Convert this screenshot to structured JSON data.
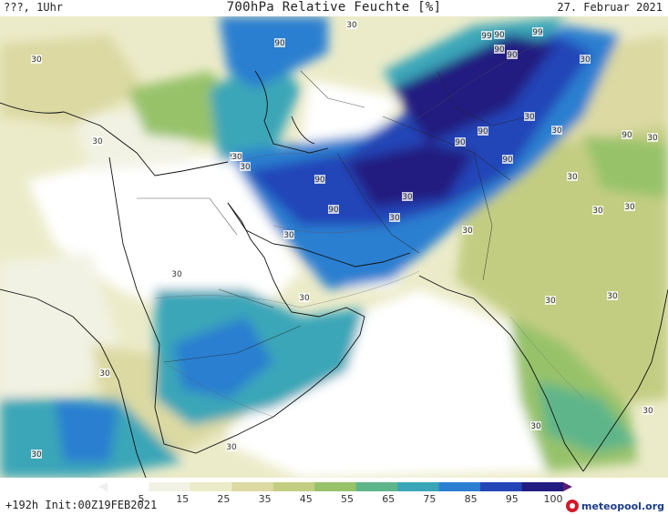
{
  "header": {
    "left": "???, 1Uhr",
    "title": "700hPa Relative Feuchte [%]",
    "date": "27. Februar 2021"
  },
  "footer": {
    "forecast_info": "+192h Init:00Z19FEB2021",
    "brand": "meteopool.org"
  },
  "colorbar": {
    "ticks": [
      "5",
      "15",
      "25",
      "35",
      "45",
      "55",
      "65",
      "75",
      "85",
      "95",
      "100"
    ],
    "colors": [
      "#ffffff",
      "#f2f2e4",
      "#ecebc9",
      "#dcd9a3",
      "#c3cd82",
      "#97c26a",
      "#5fb58a",
      "#3aa6b8",
      "#2c7fd0",
      "#2445b8",
      "#231c80"
    ]
  },
  "map_labels": [
    "30",
    "90",
    "99",
    "90",
    "99",
    "90",
    "90",
    "30",
    "30",
    "90",
    "90",
    "30",
    "30",
    "30",
    "90",
    "90",
    "30",
    "90",
    "30",
    "90",
    "90",
    "30",
    "30",
    "30",
    "30",
    "30",
    "30",
    "30",
    "30",
    "30",
    "30",
    "30",
    "30",
    "30",
    "30",
    "30",
    "30",
    "30"
  ]
}
